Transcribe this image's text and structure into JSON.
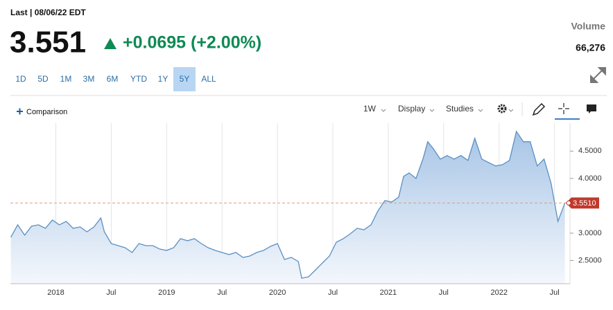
{
  "header": {
    "last": "Last | 08/06/22 EDT",
    "price": "3.551",
    "change": "+0.0695 (+2.00%)",
    "volume_label": "Volume",
    "volume": "66,276"
  },
  "range_buttons": [
    "1D",
    "5D",
    "1M",
    "3M",
    "6M",
    "YTD",
    "1Y",
    "5Y",
    "ALL"
  ],
  "selected_range": "5Y",
  "toolbar": {
    "comparison": "Comparison",
    "interval": "1W",
    "display": "Display",
    "studies": "Studies"
  },
  "chart_data": {
    "type": "area",
    "xlim": [
      2017.59,
      2022.64
    ],
    "ylim": [
      2.076,
      5.01
    ],
    "xticks": [
      {
        "value": 2018,
        "label": "2018"
      },
      {
        "value": 2018.5,
        "label": "Jul"
      },
      {
        "value": 2019,
        "label": "2019"
      },
      {
        "value": 2019.5,
        "label": "Jul"
      },
      {
        "value": 2020,
        "label": "2020"
      },
      {
        "value": 2020.5,
        "label": "Jul"
      },
      {
        "value": 2021,
        "label": "2021"
      },
      {
        "value": 2021.5,
        "label": "Jul"
      },
      {
        "value": 2022,
        "label": "2022"
      },
      {
        "value": 2022.5,
        "label": "Jul"
      }
    ],
    "yticks": [
      {
        "value": 2.5,
        "label": "2.5000"
      },
      {
        "value": 3.0,
        "label": "3.0000"
      },
      {
        "value": 4.0,
        "label": "4.0000"
      },
      {
        "value": 4.5,
        "label": "4.5000"
      }
    ],
    "grid": "x",
    "color": "#5a8fc2",
    "x": [
      2017.594,
      2017.656,
      2017.719,
      2017.781,
      2017.844,
      2017.906,
      2017.969,
      2018.031,
      2018.094,
      2018.156,
      2018.219,
      2018.281,
      2018.344,
      2018.406,
      2018.438,
      2018.5,
      2018.563,
      2018.625,
      2018.688,
      2018.75,
      2018.813,
      2018.875,
      2018.938,
      2019,
      2019.063,
      2019.125,
      2019.188,
      2019.25,
      2019.313,
      2019.375,
      2019.438,
      2019.5,
      2019.563,
      2019.625,
      2019.688,
      2019.75,
      2019.813,
      2019.875,
      2019.938,
      2020,
      2020.063,
      2020.125,
      2020.188,
      2020.219,
      2020.281,
      2020.344,
      2020.406,
      2020.469,
      2020.531,
      2020.594,
      2020.656,
      2020.719,
      2020.781,
      2020.844,
      2020.906,
      2020.969,
      2021.031,
      2021.094,
      2021.138,
      2021.188,
      2021.25,
      2021.313,
      2021.356,
      2021.406,
      2021.469,
      2021.531,
      2021.594,
      2021.656,
      2021.719,
      2021.781,
      2021.844,
      2021.906,
      2021.969,
      2022.031,
      2022.094,
      2022.156,
      2022.219,
      2022.281,
      2022.344,
      2022.406,
      2022.469,
      2022.531,
      2022.594
    ],
    "values": [
      2.924,
      3.152,
      2.962,
      3.127,
      3.152,
      3.089,
      3.241,
      3.152,
      3.215,
      3.089,
      3.114,
      3.025,
      3.114,
      3.278,
      3.025,
      2.81,
      2.772,
      2.734,
      2.646,
      2.81,
      2.772,
      2.772,
      2.709,
      2.684,
      2.734,
      2.899,
      2.861,
      2.899,
      2.81,
      2.734,
      2.684,
      2.646,
      2.608,
      2.646,
      2.557,
      2.582,
      2.646,
      2.684,
      2.759,
      2.81,
      2.519,
      2.557,
      2.481,
      2.177,
      2.203,
      2.329,
      2.456,
      2.582,
      2.835,
      2.899,
      2.987,
      3.089,
      3.063,
      3.152,
      3.405,
      3.595,
      3.57,
      3.658,
      4.038,
      4.101,
      4.0,
      4.354,
      4.671,
      4.544,
      4.354,
      4.418,
      4.354,
      4.418,
      4.329,
      4.734,
      4.354,
      4.291,
      4.228,
      4.253,
      4.329,
      4.861,
      4.671,
      4.671,
      4.228,
      4.354,
      3.911,
      3.215,
      3.551
    ],
    "price_line": {
      "value": 3.551,
      "label": "3.5510",
      "color": "#e59a73"
    }
  }
}
